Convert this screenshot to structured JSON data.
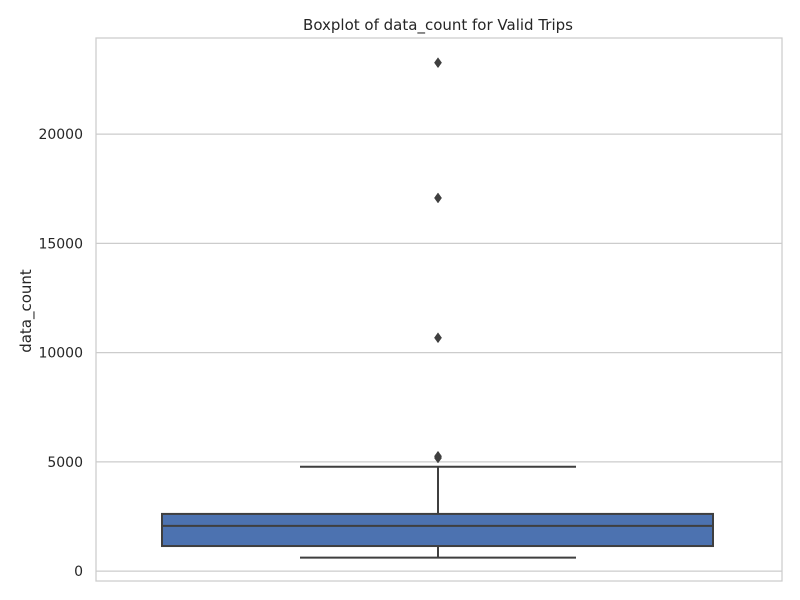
{
  "chart_data": {
    "type": "box",
    "title": "Boxplot of data_count for Valid Trips",
    "xlabel": "",
    "ylabel": "data_count",
    "ylim": [
      -450,
      24400
    ],
    "yticks": [
      0,
      5000,
      10000,
      15000,
      20000
    ],
    "yticklabels": [
      "0",
      "5000",
      "10000",
      "15000",
      "20000"
    ],
    "grid": true,
    "box": {
      "whisker_low": 620,
      "q1": 1150,
      "median": 2070,
      "q3": 2620,
      "whisker_high": 4780
    },
    "outliers": [
      5180,
      5260,
      10680,
      17080,
      23270
    ],
    "colors": {
      "box_fill": "#4c72b0",
      "line": "#3f3f3f",
      "grid": "#cccccc",
      "spine": "#cccccc"
    }
  }
}
